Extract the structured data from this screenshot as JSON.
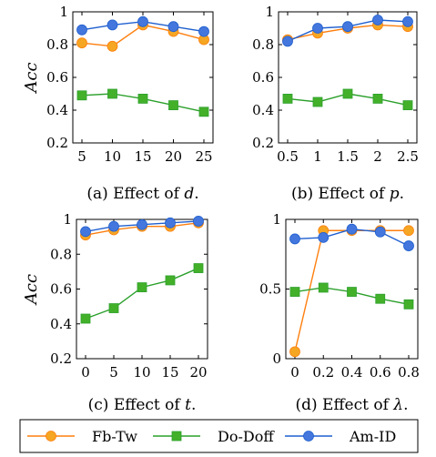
{
  "chart_data": [
    {
      "type": "line",
      "ylabel": "Acc",
      "caption": "(a) Effect of d.",
      "caption_prefix": "(a) Effect of ",
      "caption_var": "d",
      "caption_suffix": ".",
      "x": [
        5,
        10,
        15,
        20,
        25
      ],
      "xticks": [
        "5",
        "10",
        "15",
        "20",
        "25"
      ],
      "ylim": [
        0.2,
        1
      ],
      "yticks": [
        "0.2",
        "0.4",
        "0.6",
        "0.8",
        "1"
      ],
      "series": [
        {
          "name": "Fb-Tw",
          "values": [
            0.81,
            0.79,
            0.92,
            0.88,
            0.83
          ]
        },
        {
          "name": "Do-Doff",
          "values": [
            0.49,
            0.5,
            0.47,
            0.43,
            0.39
          ]
        },
        {
          "name": "Am-ID",
          "values": [
            0.89,
            0.92,
            0.94,
            0.91,
            0.88
          ]
        }
      ]
    },
    {
      "type": "line",
      "ylabel": "",
      "caption": "(b) Effect of p.",
      "caption_prefix": "(b) Effect of ",
      "caption_var": "p",
      "caption_suffix": ".",
      "x": [
        0.5,
        1,
        1.5,
        2,
        2.5
      ],
      "xticks": [
        "0.5",
        "1",
        "1.5",
        "2",
        "2.5"
      ],
      "ylim": [
        0.2,
        1
      ],
      "yticks": [
        "0.2",
        "0.4",
        "0.6",
        "0.8",
        "1"
      ],
      "series": [
        {
          "name": "Fb-Tw",
          "values": [
            0.83,
            0.87,
            0.9,
            0.92,
            0.91
          ]
        },
        {
          "name": "Do-Doff",
          "values": [
            0.47,
            0.45,
            0.5,
            0.47,
            0.43
          ]
        },
        {
          "name": "Am-ID",
          "values": [
            0.82,
            0.9,
            0.91,
            0.95,
            0.94
          ]
        }
      ]
    },
    {
      "type": "line",
      "ylabel": "Acc",
      "caption": "(c) Effect of t.",
      "caption_prefix": "(c) Effect of ",
      "caption_var": "t",
      "caption_suffix": ".",
      "x": [
        0,
        5,
        10,
        15,
        20
      ],
      "xticks": [
        "0",
        "5",
        "10",
        "15",
        "20"
      ],
      "ylim": [
        0.2,
        1
      ],
      "yticks": [
        "0.2",
        "0.4",
        "0.6",
        "0.8",
        "1"
      ],
      "series": [
        {
          "name": "Fb-Tw",
          "values": [
            0.91,
            0.94,
            0.96,
            0.96,
            0.98
          ]
        },
        {
          "name": "Do-Doff",
          "values": [
            0.43,
            0.49,
            0.61,
            0.65,
            0.72
          ]
        },
        {
          "name": "Am-ID",
          "values": [
            0.93,
            0.96,
            0.97,
            0.98,
            0.99
          ]
        }
      ]
    },
    {
      "type": "line",
      "ylabel": "",
      "caption": "(d) Effect of λ.",
      "caption_prefix": "(d) Effect of ",
      "caption_var": "λ",
      "caption_suffix": ".",
      "x": [
        0,
        0.2,
        0.4,
        0.6,
        0.8
      ],
      "xticks": [
        "0",
        "0.2",
        "0.4",
        "0.6",
        "0.8"
      ],
      "ylim": [
        0,
        1
      ],
      "yticks": [
        "0",
        "0.5",
        "1"
      ],
      "series": [
        {
          "name": "Fb-Tw",
          "values": [
            0.05,
            0.92,
            0.92,
            0.92,
            0.92
          ]
        },
        {
          "name": "Do-Doff",
          "values": [
            0.48,
            0.51,
            0.48,
            0.43,
            0.39
          ]
        },
        {
          "name": "Am-ID",
          "values": [
            0.86,
            0.87,
            0.93,
            0.91,
            0.81
          ]
        }
      ]
    }
  ],
  "legend": [
    {
      "name": "Fb-Tw",
      "marker": "circle",
      "color": "#ff7f0e",
      "fill": "#f5a623"
    },
    {
      "name": "Do-Doff",
      "marker": "square",
      "color": "#2ca02c",
      "fill": "#43b02a"
    },
    {
      "name": "Am-ID",
      "marker": "circle",
      "color": "#1f5fcf",
      "fill": "#4477dd"
    }
  ]
}
